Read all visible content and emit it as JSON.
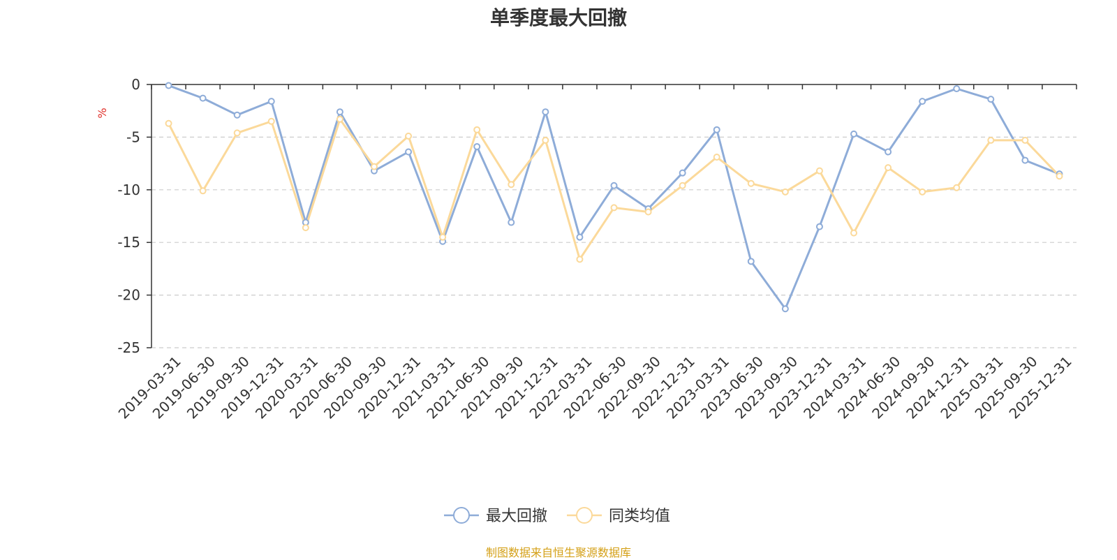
{
  "chart_data": {
    "type": "line",
    "title": "单季度最大回撤",
    "ylabel": "%",
    "ylim": [
      -25,
      0
    ],
    "yticks": [
      0,
      -5,
      -10,
      -15,
      -20,
      -25
    ],
    "grid": true,
    "legend_position": "bottom-center",
    "categories": [
      "2019-03-31",
      "2019-06-30",
      "2019-09-30",
      "2019-12-31",
      "2020-03-31",
      "2020-06-30",
      "2020-09-30",
      "2020-12-31",
      "2021-03-31",
      "2021-06-30",
      "2021-09-30",
      "2021-12-31",
      "2022-03-31",
      "2022-06-30",
      "2022-09-30",
      "2022-12-31",
      "2023-03-31",
      "2023-06-30",
      "2023-09-30",
      "2023-12-31",
      "2024-03-31",
      "2024-06-30",
      "2024-09-30",
      "2024-12-31",
      "2025-03-31",
      "2025-09-30",
      "2025-12-31"
    ],
    "series": [
      {
        "name": "最大回撤",
        "color": "#8eacd8",
        "values": [
          -0.1,
          -1.3,
          -2.9,
          -1.6,
          -13.1,
          -2.6,
          -8.2,
          -6.4,
          -14.9,
          -5.9,
          -13.1,
          -2.6,
          -14.5,
          -9.6,
          -11.8,
          -8.4,
          -4.3,
          -16.8,
          -21.3,
          -13.5,
          -4.7,
          -6.4,
          -1.6,
          -0.4,
          -1.4,
          -7.2,
          -8.5
        ]
      },
      {
        "name": "同类均值",
        "color": "#fbd99a",
        "values": [
          -3.7,
          -10.1,
          -4.6,
          -3.5,
          -13.6,
          -3.3,
          -7.8,
          -4.9,
          -14.5,
          -4.3,
          -9.5,
          -5.3,
          -16.6,
          -11.7,
          -12.1,
          -9.6,
          -6.9,
          -9.4,
          -10.2,
          -8.2,
          -14.1,
          -7.9,
          -10.2,
          -9.8,
          -5.3,
          -5.3,
          -8.7
        ]
      }
    ]
  },
  "source_note": "制图数据来自恒生聚源数据库"
}
